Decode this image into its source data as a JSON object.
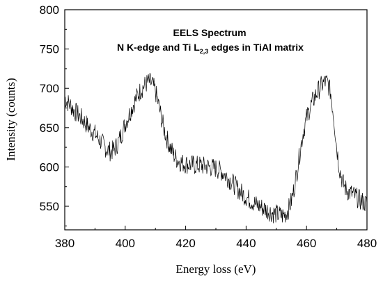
{
  "chart_data": {
    "type": "line",
    "title": "EELS Spectrum",
    "subtitle_prefix": "N K-edge and Ti L",
    "subtitle_subscript": "2,3",
    "subtitle_suffix": " edges in TiAl matrix",
    "xlabel": "Energy loss (eV)",
    "ylabel": "Intensity (counts)",
    "xlim": [
      380,
      480
    ],
    "ylim": [
      520,
      800
    ],
    "xticks": [
      380,
      400,
      420,
      440,
      460,
      480
    ],
    "yticks": [
      550,
      600,
      650,
      700,
      750,
      800
    ],
    "grid": false,
    "line_color": "#000000",
    "series": [
      {
        "x": [
          380,
          381,
          382,
          383,
          384,
          385,
          386,
          387,
          388,
          389,
          390,
          391,
          392,
          393,
          394,
          395,
          396,
          397,
          398,
          399,
          400,
          401,
          402,
          403,
          404,
          405,
          406,
          407,
          408,
          409,
          410,
          411,
          412,
          413,
          414,
          415,
          416,
          417,
          418,
          419,
          420,
          421,
          422,
          423,
          424,
          425,
          426,
          427,
          428,
          429,
          430,
          431,
          432,
          433,
          434,
          435,
          436,
          437,
          438,
          439,
          440,
          441,
          442,
          443,
          444,
          445,
          446,
          447,
          448,
          449,
          450,
          451,
          452,
          453,
          454,
          455,
          456,
          457,
          458,
          459,
          460,
          461,
          462,
          463,
          464,
          465,
          466,
          467,
          468,
          469,
          470,
          471,
          472,
          473,
          474,
          475,
          476,
          477,
          478,
          479,
          480
        ],
        "values": [
          688,
          682,
          678,
          672,
          668,
          664,
          660,
          655,
          650,
          646,
          642,
          637,
          632,
          627,
          622,
          620,
          621,
          626,
          634,
          644,
          655,
          664,
          673,
          682,
          690,
          697,
          702,
          706,
          708,
          705,
          696,
          680,
          662,
          646,
          634,
          624,
          616,
          610,
          607,
          605,
          604,
          603,
          603,
          602,
          602,
          602,
          601,
          601,
          600,
          599,
          598,
          596,
          594,
          590,
          586,
          582,
          578,
          573,
          569,
          565,
          562,
          559,
          556,
          553,
          551,
          549,
          547,
          545,
          543,
          541,
          540,
          539,
          538,
          540,
          546,
          557,
          575,
          598,
          624,
          646,
          662,
          674,
          683,
          691,
          698,
          704,
          708,
          707,
          694,
          664,
          624,
          596,
          580,
          572,
          568,
          566,
          563,
          560,
          557,
          555,
          553
        ]
      }
    ]
  }
}
